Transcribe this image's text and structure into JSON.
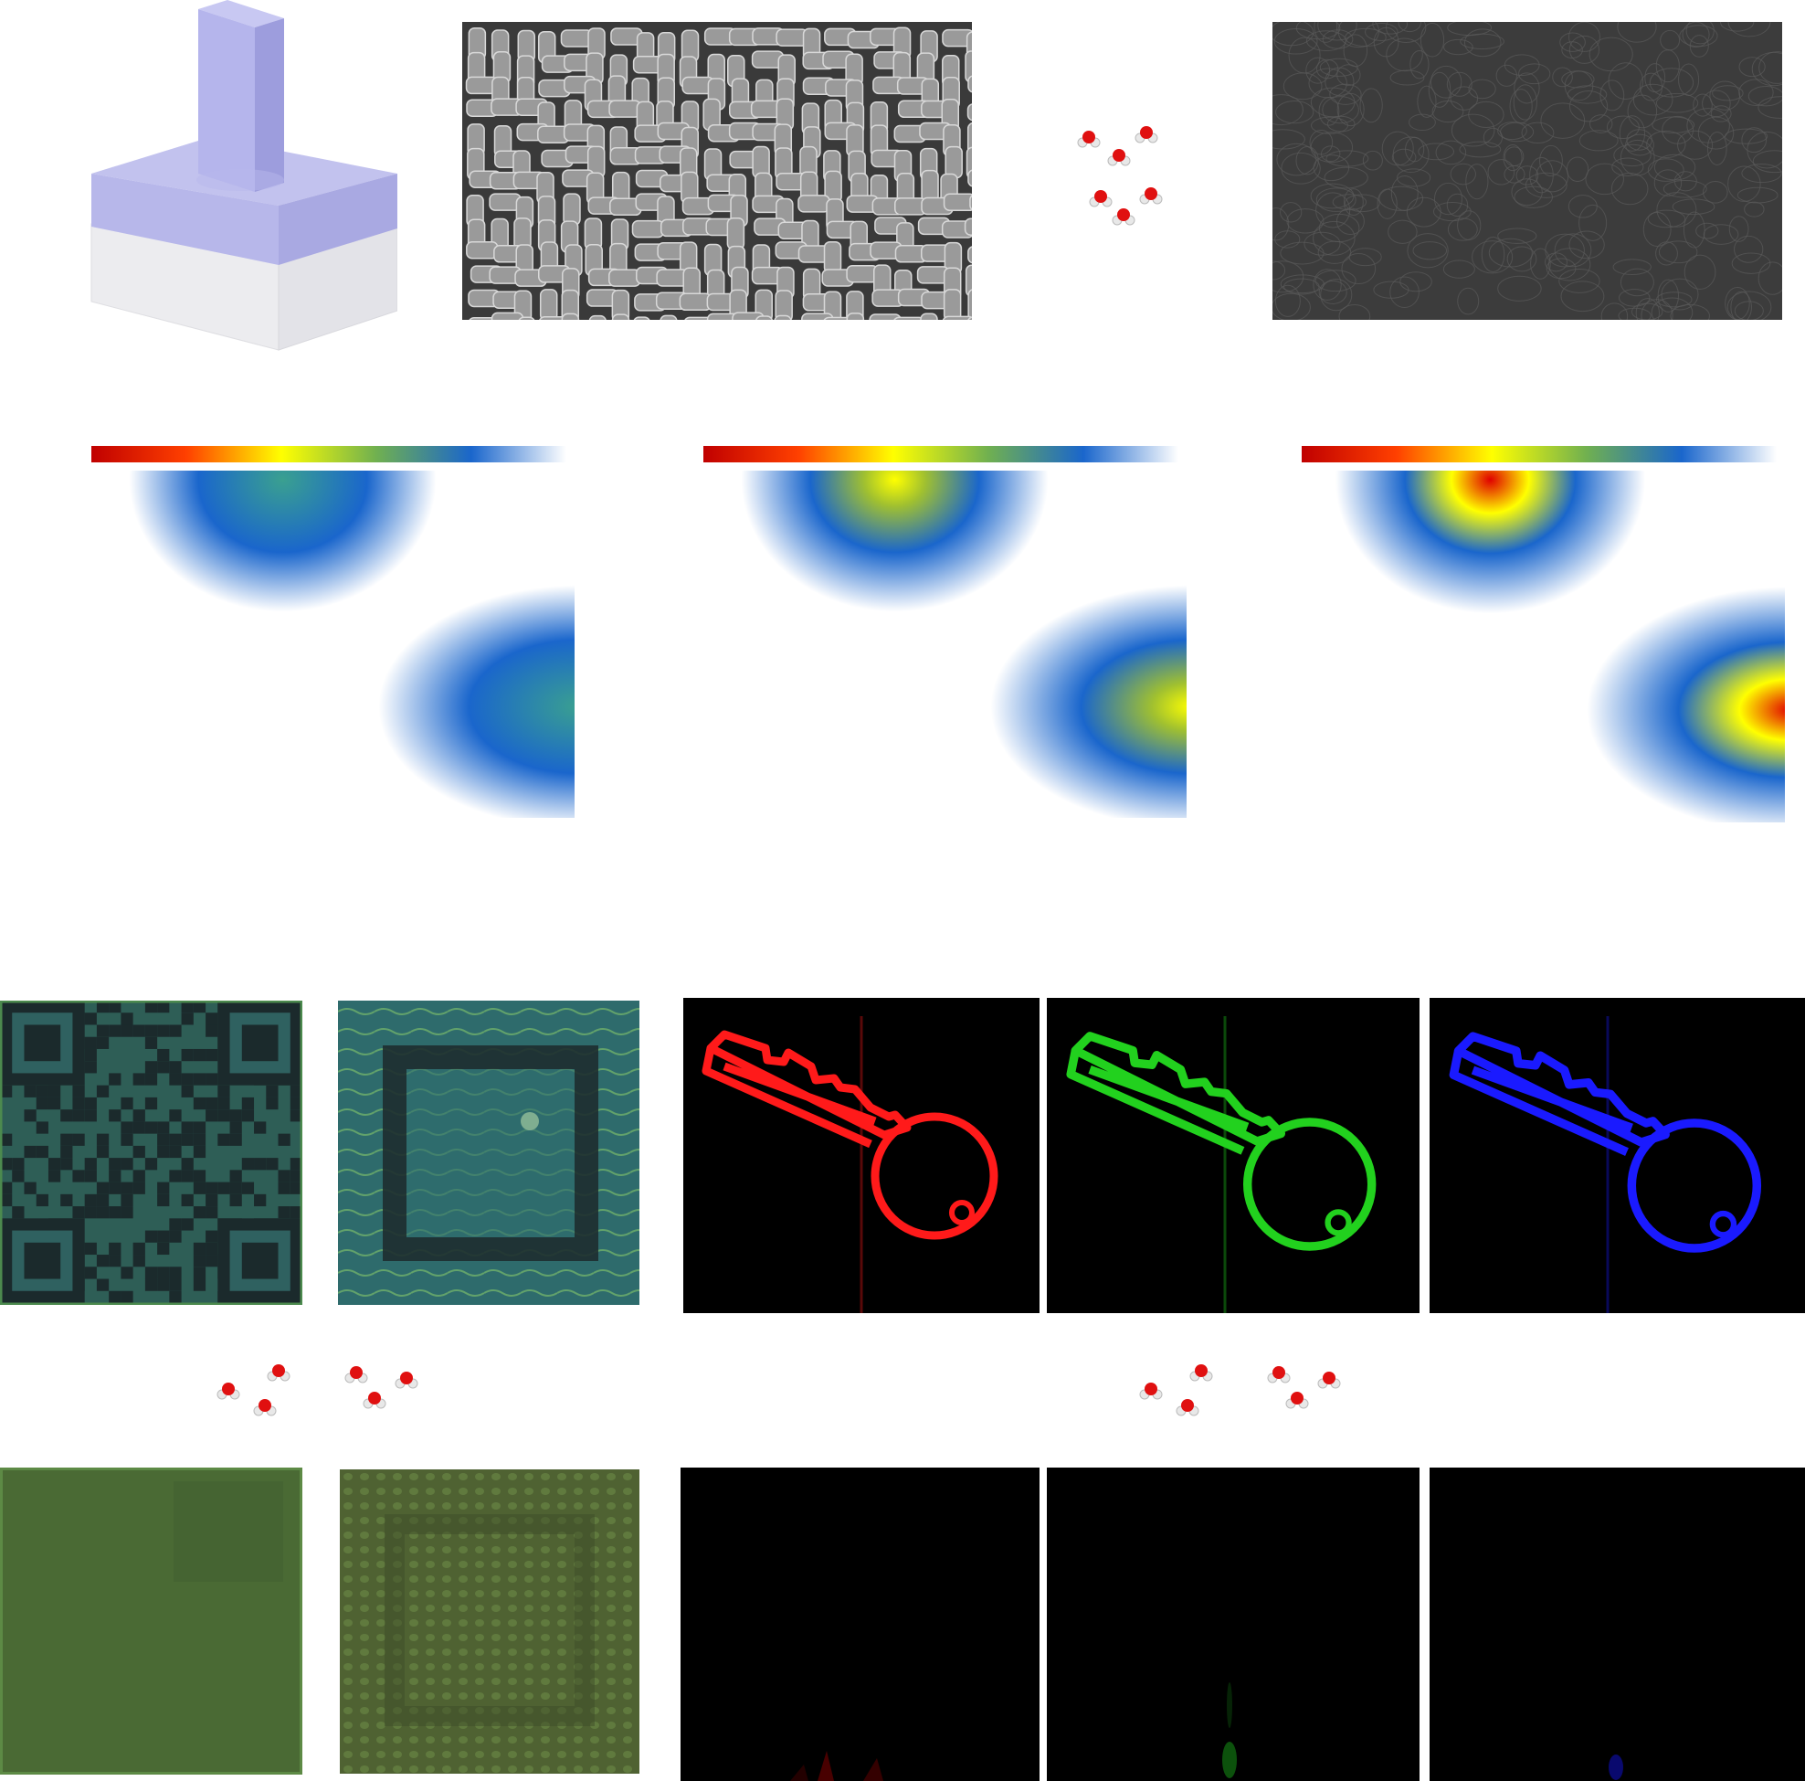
{
  "figure": {
    "panels": [
      {
        "id": "unit-cell",
        "icon": "pillar-on-substrate-icon"
      },
      {
        "id": "sem-dry",
        "icon": "sem-nanopillar-array-icon"
      },
      {
        "id": "water-transition",
        "icon": "water-molecules-icon"
      },
      {
        "id": "sem-wet",
        "icon": "sem-collapsed-surface-icon"
      },
      {
        "id": "field-map-1",
        "icon": "field-intensity-map-icon"
      },
      {
        "id": "field-map-2",
        "icon": "field-intensity-map-icon"
      },
      {
        "id": "field-map-3",
        "icon": "field-intensity-map-icon"
      },
      {
        "id": "qr-code-dry",
        "icon": "qr-code-image-icon"
      },
      {
        "id": "qr-square-dry",
        "icon": "square-pattern-image-icon"
      },
      {
        "id": "hologram-red",
        "icon": "key-hologram-icon",
        "color": "#ff1a1a"
      },
      {
        "id": "hologram-green",
        "icon": "key-hologram-icon",
        "color": "#22d11e"
      },
      {
        "id": "hologram-blue",
        "icon": "key-hologram-icon",
        "color": "#1a1aff"
      },
      {
        "id": "qr-code-wet",
        "icon": "blank-qr-image-icon"
      },
      {
        "id": "qr-square-wet",
        "icon": "blank-square-image-icon"
      },
      {
        "id": "hologram-red-wet",
        "icon": "blank-hologram-icon",
        "color": "#000000"
      },
      {
        "id": "hologram-green-wet",
        "icon": "blank-hologram-icon",
        "color": "#000000"
      },
      {
        "id": "hologram-blue-wet",
        "icon": "blank-hologram-icon",
        "color": "#000000"
      }
    ],
    "colorbar": [
      "#c00000",
      "#ff3000",
      "#ffa000",
      "#ffff00",
      "#90c040",
      "#1a66cc",
      "#ffffff"
    ],
    "field_peak_levels": [
      0.35,
      0.6,
      1.0
    ]
  }
}
